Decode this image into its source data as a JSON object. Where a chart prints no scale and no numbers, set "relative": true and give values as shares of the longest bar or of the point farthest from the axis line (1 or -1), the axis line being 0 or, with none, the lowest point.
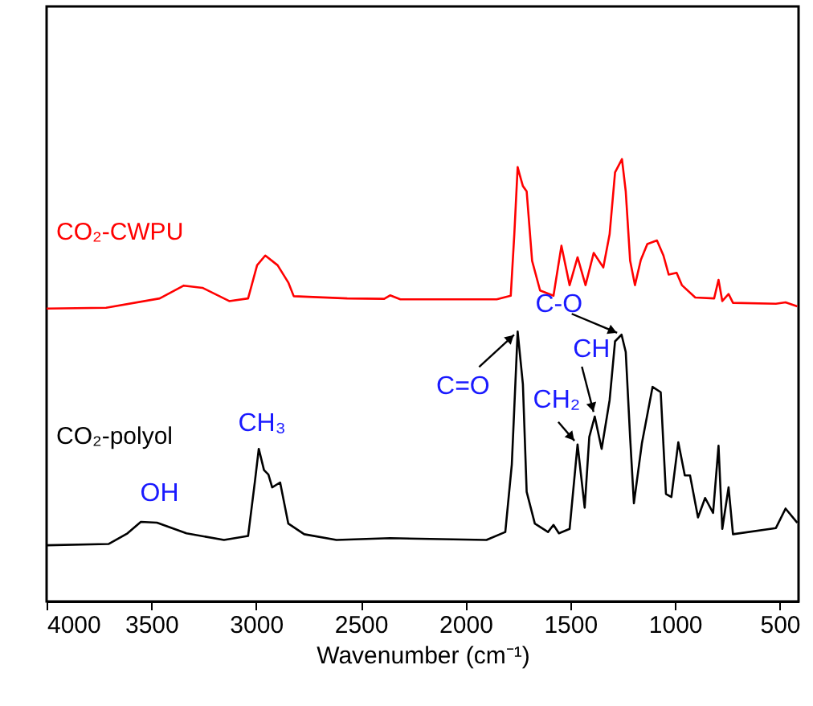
{
  "chart_data": {
    "type": "line",
    "relative": true,
    "xlabel": "Wavenumber (cm⁻¹)",
    "xlim": [
      4000,
      410
    ],
    "xticks": [
      4000,
      3500,
      3000,
      2500,
      2000,
      1500,
      1000,
      500
    ],
    "grid": false,
    "marker": "none",
    "line_style": "solid",
    "series": [
      {
        "name": "CO₂-CWPU",
        "color": "#ff0000",
        "x": [
          4000,
          3716,
          3460,
          3345,
          3256,
          3128,
          3038,
          2995,
          2956,
          2897,
          2846,
          2820,
          2565,
          2388,
          2360,
          2311,
          1851,
          1784,
          1767,
          1751,
          1741,
          1726,
          1708,
          1682,
          1644,
          1580,
          1542,
          1503,
          1465,
          1427,
          1388,
          1342,
          1312,
          1286,
          1253,
          1235,
          1214,
          1191,
          1163,
          1132,
          1086,
          1055,
          1030,
          992,
          967,
          903,
          813,
          792,
          774,
          744,
          723,
          518,
          472,
          416
        ],
        "values": [
          0.662,
          0.664,
          0.685,
          0.714,
          0.709,
          0.679,
          0.685,
          0.76,
          0.782,
          0.76,
          0.721,
          0.69,
          0.685,
          0.684,
          0.692,
          0.683,
          0.683,
          0.691,
          0.83,
          0.982,
          0.964,
          0.939,
          0.927,
          0.77,
          0.703,
          0.691,
          0.804,
          0.715,
          0.778,
          0.715,
          0.788,
          0.755,
          0.83,
          0.97,
          1.0,
          0.927,
          0.77,
          0.715,
          0.772,
          0.808,
          0.816,
          0.782,
          0.739,
          0.743,
          0.715,
          0.687,
          0.685,
          0.727,
          0.679,
          0.695,
          0.675,
          0.673,
          0.676,
          0.667
        ]
      },
      {
        "name": "CO₂-polyol",
        "color": "#000000",
        "x": [
          4000,
          3703,
          3614,
          3550,
          3473,
          3332,
          3153,
          3038,
          3005,
          2987,
          2962,
          2941,
          2923,
          2885,
          2846,
          2770,
          2616,
          2360,
          1900,
          1810,
          1779,
          1751,
          1726,
          1708,
          1669,
          1606,
          1580,
          1554,
          1503,
          1465,
          1431,
          1409,
          1383,
          1350,
          1312,
          1286,
          1255,
          1235,
          1214,
          1196,
          1158,
          1107,
          1068,
          1043,
          1017,
          984,
          953,
          928,
          890,
          856,
          818,
          792,
          774,
          744,
          723,
          518,
          472,
          416
        ],
        "values": [
          0.127,
          0.13,
          0.154,
          0.18,
          0.178,
          0.154,
          0.139,
          0.148,
          0.273,
          0.345,
          0.297,
          0.287,
          0.258,
          0.269,
          0.176,
          0.152,
          0.139,
          0.143,
          0.139,
          0.157,
          0.309,
          0.61,
          0.491,
          0.248,
          0.176,
          0.157,
          0.173,
          0.154,
          0.164,
          0.355,
          0.212,
          0.372,
          0.418,
          0.345,
          0.455,
          0.588,
          0.603,
          0.564,
          0.37,
          0.222,
          0.357,
          0.485,
          0.473,
          0.243,
          0.236,
          0.36,
          0.285,
          0.285,
          0.19,
          0.234,
          0.2,
          0.352,
          0.164,
          0.258,
          0.152,
          0.166,
          0.21,
          0.178
        ]
      }
    ],
    "annotations": [
      {
        "text": "OH",
        "x": 3530,
        "y": 0.18
      },
      {
        "text": "CH₃",
        "x": 2987,
        "y": 0.345
      },
      {
        "text": "C=O",
        "x": 1751,
        "y": 0.61
      },
      {
        "text": "CH₂",
        "x": 1465,
        "y": 0.355
      },
      {
        "text": "CH",
        "x": 1383,
        "y": 0.418
      },
      {
        "text": "C-O",
        "x": 1255,
        "y": 0.603
      }
    ]
  }
}
